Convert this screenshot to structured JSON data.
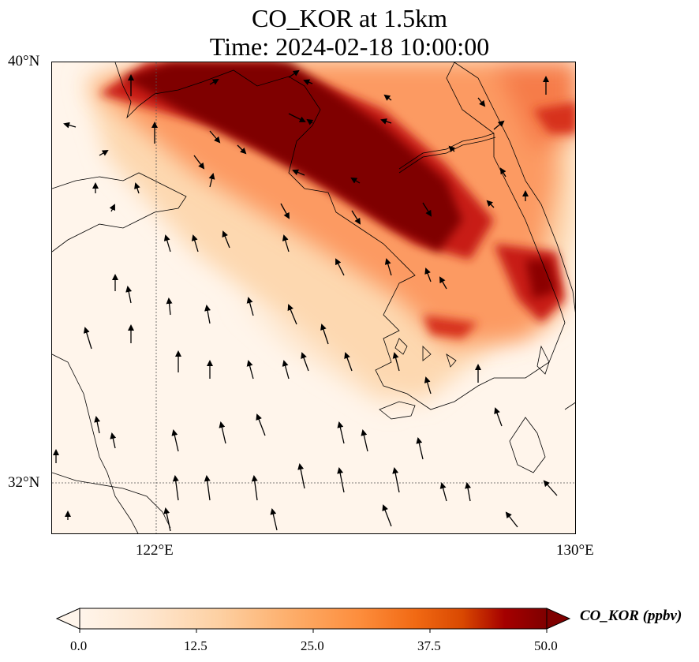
{
  "title": {
    "line1": "CO_KOR at 1.5km",
    "line2": "Time: 2024-02-18 10:00:00"
  },
  "map": {
    "lat_ticks": [
      "40°N",
      "32°N"
    ],
    "lon_ticks": [
      "122°E",
      "130°E"
    ],
    "lat_range": [
      31,
      40
    ],
    "lon_range": [
      120,
      130
    ],
    "gridlines": "dotted at 122°E and 32°N",
    "background_color": "#fff5eb"
  },
  "colorbar": {
    "label": "CO_KOR (ppbv)",
    "ticks": [
      "0.0",
      "12.5",
      "25.0",
      "37.5",
      "50.0"
    ],
    "range": [
      0,
      50
    ],
    "extend": "both",
    "colormap": [
      "#fff5eb",
      "#fee6ce",
      "#fdd0a2",
      "#fdae6b",
      "#fd8d3c",
      "#f16913",
      "#d94801",
      "#a50000",
      "#7f0000"
    ]
  }
}
